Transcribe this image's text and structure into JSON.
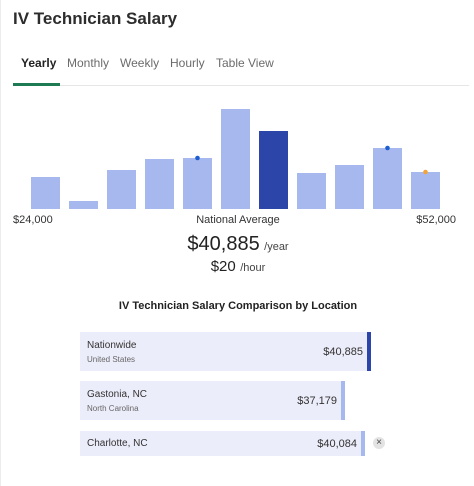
{
  "page": {
    "title": "IV Technician Salary"
  },
  "tabs": [
    "Yearly",
    "Monthly",
    "Weekly",
    "Hourly",
    "Table View"
  ],
  "colors": {
    "bar": "#a7b8ef",
    "bar_highlight": "#2c45a8",
    "tab_active": "#1e7a52",
    "dot_blue": "#1d5fd0",
    "dot_orange": "#f2a33a"
  },
  "chart_data": {
    "type": "bar",
    "title": "",
    "xlabel": "",
    "ylabel": "",
    "min_label": "$24,000",
    "center_label": "National Average",
    "max_label": "$52,000",
    "values": [
      32,
      8,
      39,
      50,
      51,
      100,
      78,
      36,
      44,
      61,
      37
    ],
    "highlight_index": 6,
    "markers": [
      {
        "bar_index": 4,
        "color": "blue"
      },
      {
        "bar_index": 9,
        "color": "blue"
      },
      {
        "bar_index": 10,
        "color": "orange"
      }
    ]
  },
  "salary": {
    "yearly": "$40,885",
    "yearly_unit": "/year",
    "hourly": "$20",
    "hourly_unit": "/hour"
  },
  "comparison": {
    "title": "IV Technician Salary Comparison by Location",
    "rows": [
      {
        "name": "Nationwide",
        "sub": "United States",
        "value": "$40,885"
      },
      {
        "name": "Gastonia, NC",
        "sub": "North Carolina",
        "value": "$37,179"
      },
      {
        "name": "Charlotte, NC",
        "sub": "",
        "value": "$40,084"
      }
    ],
    "remove_icon": "×"
  }
}
